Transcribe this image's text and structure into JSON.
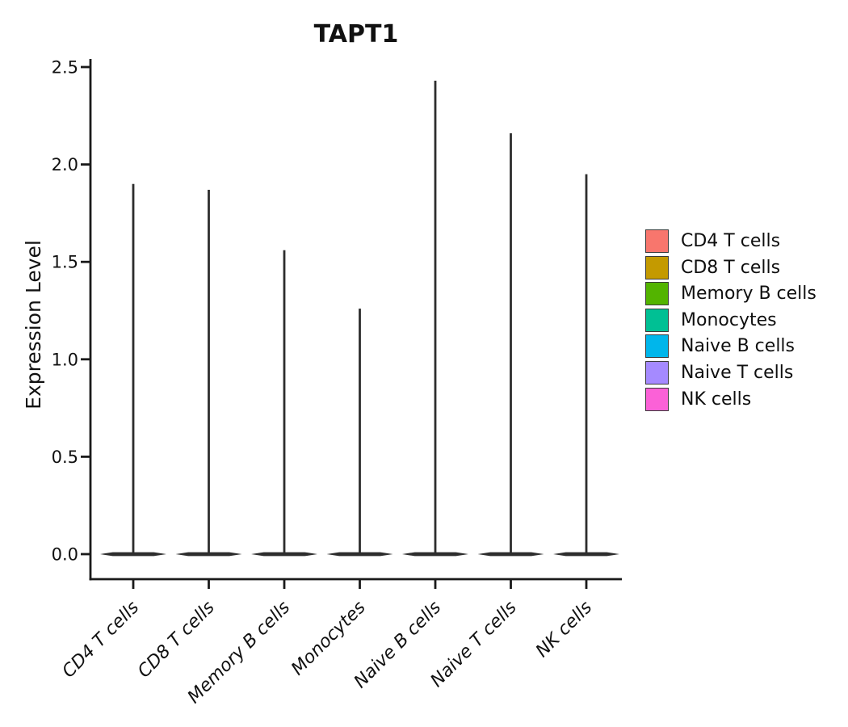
{
  "chart_data": {
    "type": "violin",
    "title": "TAPT1",
    "ylabel": "Expression Level",
    "xlabel": "",
    "categories": [
      "CD4 T cells",
      "CD8 T cells",
      "Memory B cells",
      "Monocytes",
      "Naive B cells",
      "Naive T cells",
      "NK cells"
    ],
    "series": [
      {
        "name": "max_expression",
        "values": [
          1.9,
          1.87,
          1.56,
          1.26,
          2.43,
          2.16,
          1.95
        ]
      }
    ],
    "shape_note": "each violin collapses to a flat dark bar at 0 with a thin vertical spike up to the max value",
    "y_ticks": [
      0.0,
      0.5,
      1.0,
      1.5,
      2.0,
      2.5
    ],
    "y_tick_labels": [
      "0.0",
      "0.5",
      "1.0",
      "1.5",
      "2.0",
      "2.5"
    ],
    "ylim": [
      0,
      2.5
    ],
    "grid": false,
    "legend_position": "right",
    "legend": [
      {
        "label": "CD4 T cells",
        "color": "#F8766D"
      },
      {
        "label": "CD8 T cells",
        "color": "#C49A00"
      },
      {
        "label": "Memory B cells",
        "color": "#53B400"
      },
      {
        "label": "Monocytes",
        "color": "#00C094"
      },
      {
        "label": "Naive B cells",
        "color": "#00B6EB"
      },
      {
        "label": "Naive T cells",
        "color": "#A58AFF"
      },
      {
        "label": "NK cells",
        "color": "#FB61D7"
      }
    ],
    "violin_color": "#2d2d2d",
    "axis_color": "#1a1a1a",
    "text_color": "#111111"
  }
}
